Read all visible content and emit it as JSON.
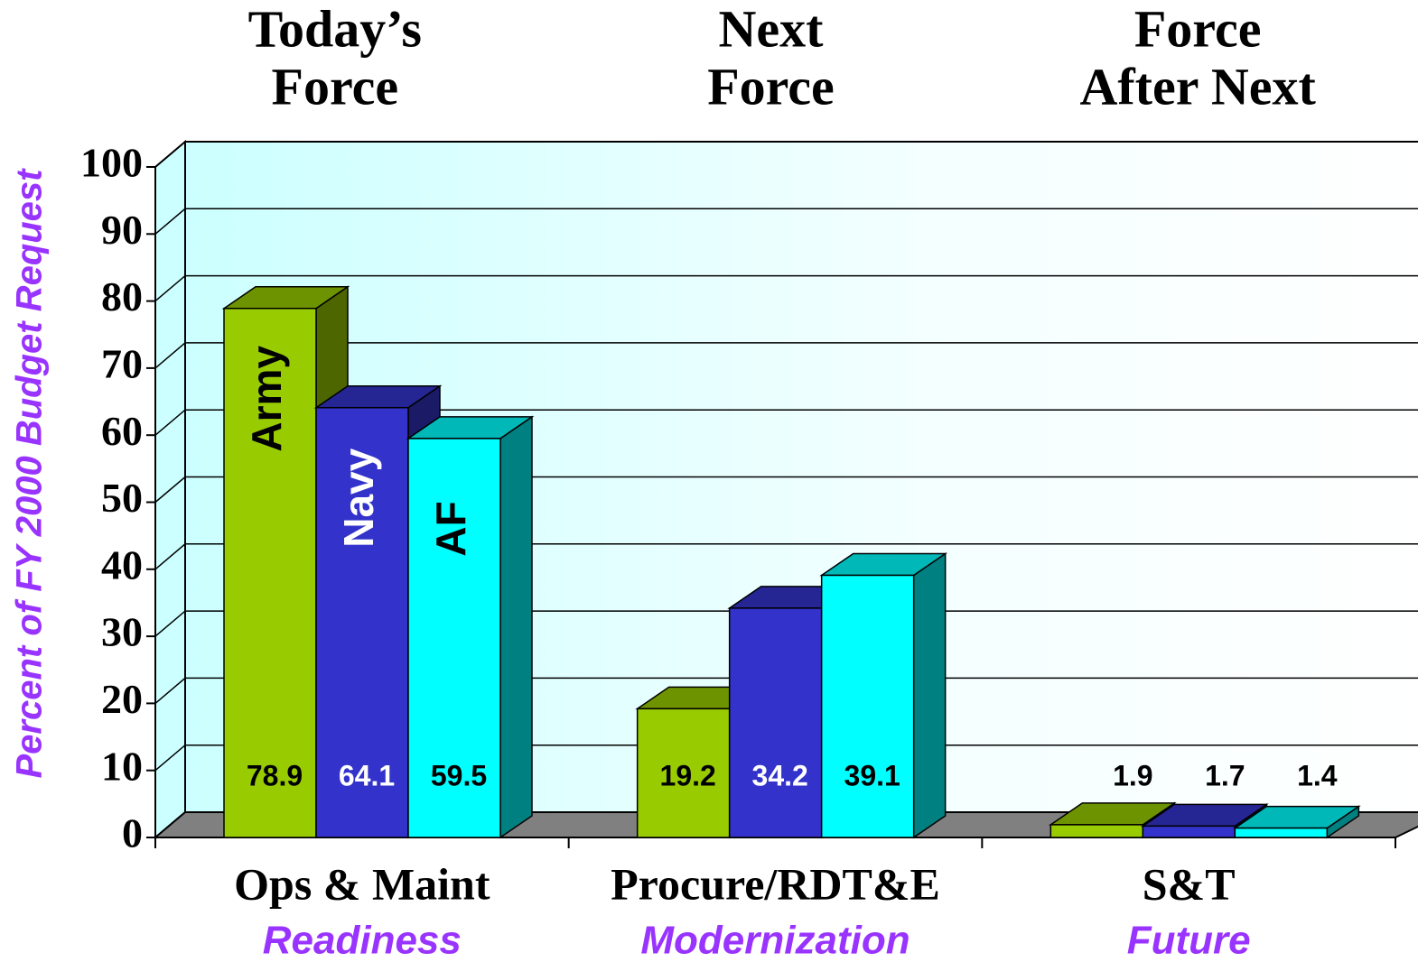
{
  "chart_data": {
    "type": "bar3d",
    "group_titles": [
      [
        "Today’s",
        "Force"
      ],
      [
        "Next",
        "Force"
      ],
      [
        "Force",
        "After Next"
      ]
    ],
    "categories": [
      "Ops & Maint",
      "Procure/RDT&E",
      "S&T"
    ],
    "subcategories": [
      "Readiness",
      "Modernization",
      "Future"
    ],
    "y_label": "Percent of FY 2000 Budget Request",
    "series": [
      {
        "name": "Army",
        "color": "#99cc00",
        "label_color": "#000000",
        "values": [
          78.9,
          19.2,
          1.9
        ]
      },
      {
        "name": "Navy",
        "color": "#3333cc",
        "label_color": "#ffffff",
        "values": [
          64.1,
          34.2,
          1.7
        ]
      },
      {
        "name": "AF",
        "color": "#00ffff",
        "label_color": "#000000",
        "values": [
          59.5,
          39.1,
          1.4
        ]
      }
    ],
    "ylim": [
      0,
      100
    ],
    "yticks": [
      0,
      10,
      20,
      30,
      40,
      50,
      60,
      70,
      80,
      90,
      100
    ],
    "grid": true
  }
}
